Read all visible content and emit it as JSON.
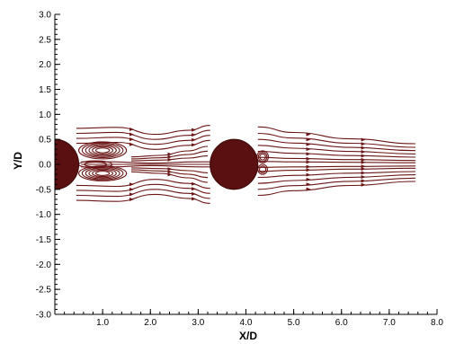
{
  "chart_data": {
    "type": "streamline",
    "xlabel": "X/D",
    "ylabel": "Y/D",
    "xlim": [
      0.0,
      8.0
    ],
    "ylim": [
      -3.0,
      3.0
    ],
    "x_ticks": [
      1.0,
      2.0,
      3.0,
      4.0,
      5.0,
      6.0,
      7.0,
      8.0
    ],
    "x_tick_labels": [
      "1.0",
      "2.0",
      "3.0",
      "4.0",
      "5.0",
      "6.0",
      "7.0",
      "8.0"
    ],
    "y_ticks": [
      3.0,
      2.5,
      2.0,
      1.5,
      1.0,
      0.5,
      0.0,
      -0.5,
      -1.0,
      -1.5,
      -2.0,
      -2.5,
      -3.0
    ],
    "y_tick_labels": [
      "3.0",
      "2.5",
      "2.0",
      "1.5",
      "1.0",
      "0.5",
      "0.0",
      "-0.5",
      "-1.0",
      "-1.5",
      "-2.0",
      "-2.5",
      "-3.0"
    ],
    "cylinders": [
      {
        "center_x": 0.0,
        "center_y": 0.0,
        "diameter": 1.0
      },
      {
        "center_x": 3.75,
        "center_y": 0.0,
        "diameter": 1.0
      }
    ],
    "colors": {
      "streamline": "#6b1616",
      "cylinder": "#5a1010"
    }
  }
}
